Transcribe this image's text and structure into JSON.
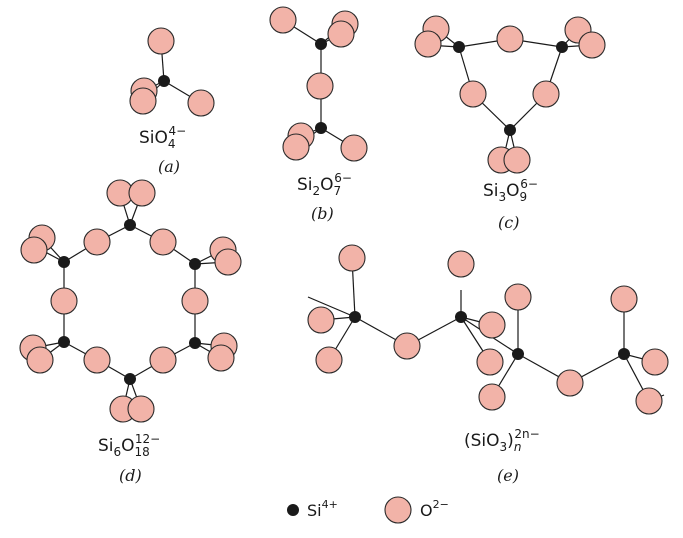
{
  "figure": {
    "panels": [
      {
        "id": "a",
        "label": "(a)",
        "formula": {
          "base1": "SiO",
          "sub": "4",
          "sup": "4−"
        }
      },
      {
        "id": "b",
        "label": "(b)",
        "formula": {
          "base1": "Si",
          "sub1": "2",
          "base2": "O",
          "sub2": "7",
          "sup": "6−"
        }
      },
      {
        "id": "c",
        "label": "(c)",
        "formula": {
          "base1": "Si",
          "sub1": "3",
          "base2": "O",
          "sub2": "9",
          "sup": "6−"
        }
      },
      {
        "id": "d",
        "label": "(d)",
        "formula": {
          "base1": "Si",
          "sub1": "6",
          "base2": "O",
          "sub2": "18",
          "sup": "12−"
        }
      },
      {
        "id": "e",
        "label": "(e)",
        "formula": {
          "base1": "(SiO",
          "sub1": "3",
          "base2": ")",
          "sub2": "n",
          "sup": "2n−"
        }
      }
    ],
    "legend": {
      "silicon": {
        "text": "Si",
        "sup": "4+"
      },
      "oxygen": {
        "text": "O",
        "sup": "2−"
      }
    },
    "colors": {
      "oxygen_fill": "#f2b3a8",
      "outline": "#2a2a2a",
      "silicon": "#1a1a1a"
    }
  }
}
